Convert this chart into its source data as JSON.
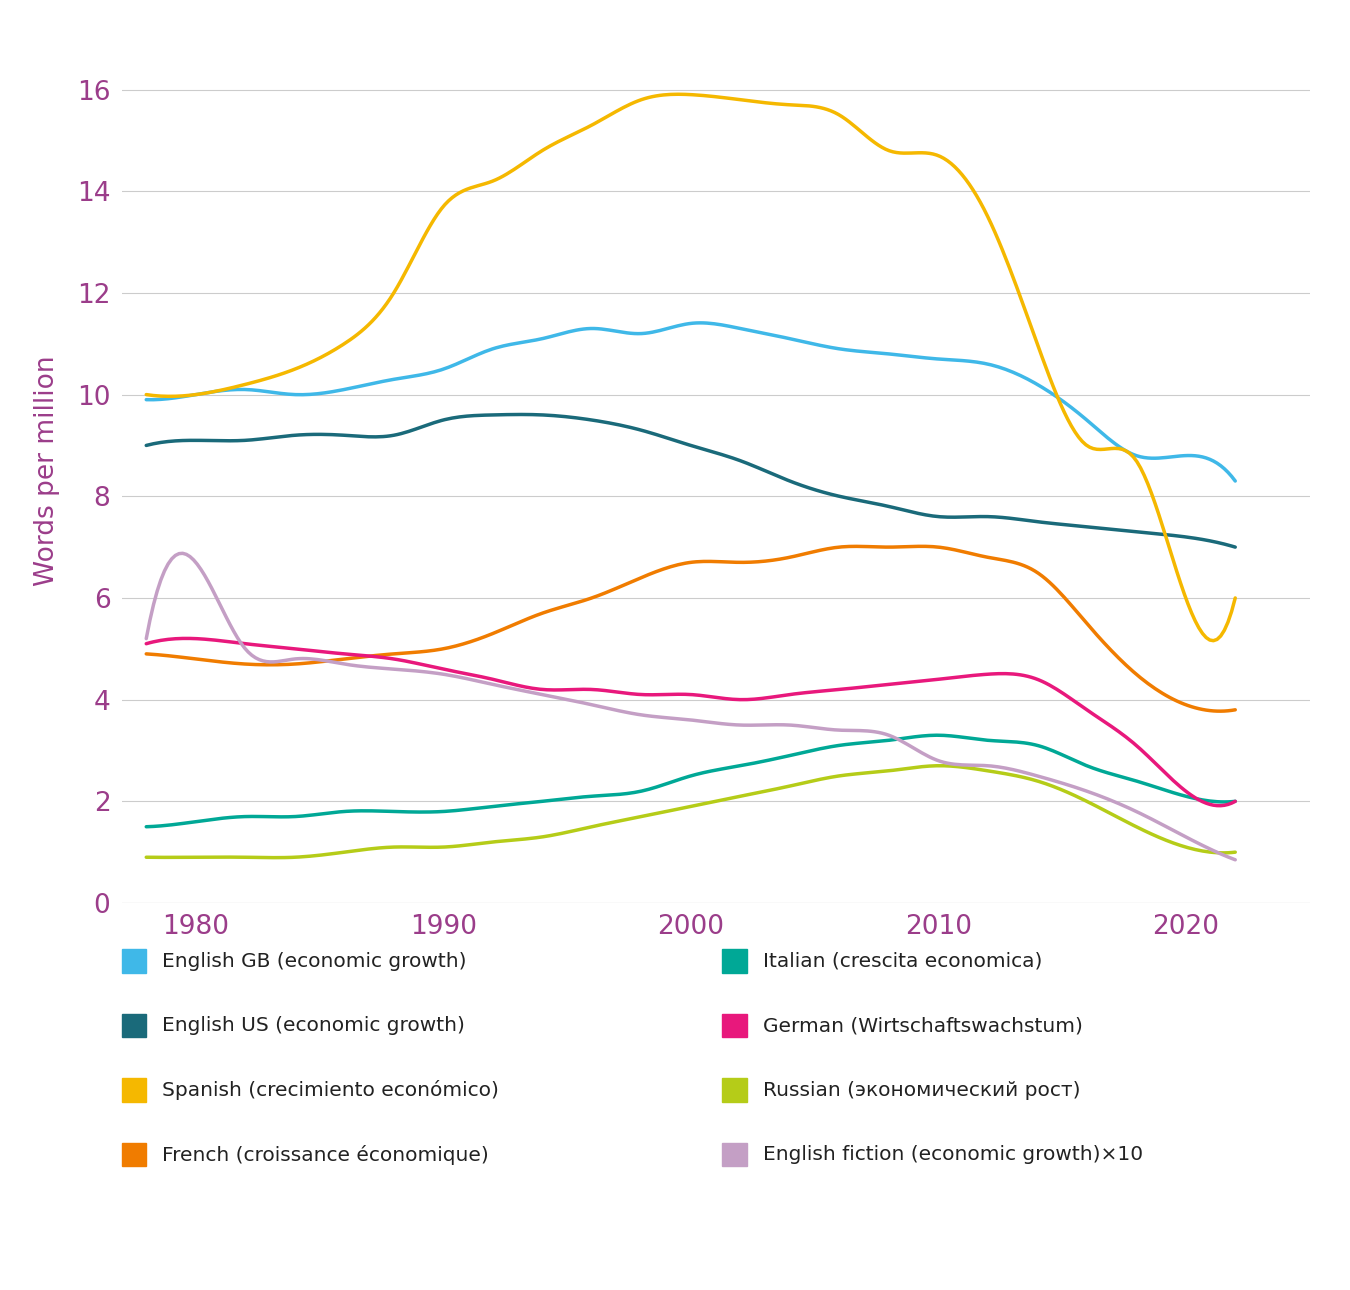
{
  "ylabel": "Words per million",
  "xlim": [
    1977,
    2025
  ],
  "ylim": [
    0,
    17
  ],
  "yticks": [
    0,
    2,
    4,
    6,
    8,
    10,
    12,
    14,
    16
  ],
  "xticks": [
    1980,
    1990,
    2000,
    2010,
    2020
  ],
  "background_color": "#ffffff",
  "grid_color": "#cccccc",
  "tick_color": "#9b3d8a",
  "label_color": "#9b3d8a",
  "series": [
    {
      "name": "English GB (economic growth)",
      "color": "#3fb8e8",
      "data_x": [
        1978,
        1980,
        1982,
        1984,
        1986,
        1988,
        1990,
        1992,
        1994,
        1996,
        1998,
        2000,
        2002,
        2004,
        2006,
        2008,
        2010,
        2012,
        2014,
        2016,
        2018,
        2020,
        2022
      ],
      "data_y": [
        9.9,
        10.0,
        10.1,
        10.0,
        10.1,
        10.3,
        10.5,
        10.9,
        11.1,
        11.3,
        11.2,
        11.4,
        11.3,
        11.1,
        10.9,
        10.8,
        10.7,
        10.6,
        10.2,
        9.5,
        8.8,
        8.8,
        8.3
      ],
      "linewidth": 2.5
    },
    {
      "name": "English US (economic growth)",
      "color": "#1a6a7a",
      "data_x": [
        1978,
        1980,
        1982,
        1984,
        1986,
        1988,
        1990,
        1992,
        1994,
        1996,
        1998,
        2000,
        2002,
        2004,
        2006,
        2008,
        2010,
        2012,
        2014,
        2016,
        2018,
        2020,
        2022
      ],
      "data_y": [
        9.0,
        9.1,
        9.1,
        9.2,
        9.2,
        9.2,
        9.5,
        9.6,
        9.6,
        9.5,
        9.3,
        9.0,
        8.7,
        8.3,
        8.0,
        7.8,
        7.6,
        7.6,
        7.5,
        7.4,
        7.3,
        7.2,
        7.0
      ],
      "linewidth": 2.5
    },
    {
      "name": "Spanish (crecimiento económico)",
      "color": "#f5b800",
      "data_x": [
        1978,
        1980,
        1982,
        1984,
        1986,
        1988,
        1990,
        1992,
        1994,
        1996,
        1998,
        2000,
        2002,
        2004,
        2006,
        2008,
        2010,
        2012,
        2014,
        2016,
        2018,
        2020,
        2022
      ],
      "data_y": [
        10.0,
        10.0,
        10.2,
        10.5,
        11.0,
        12.0,
        13.7,
        14.2,
        14.8,
        15.3,
        15.8,
        15.9,
        15.8,
        15.7,
        15.5,
        14.8,
        14.7,
        13.5,
        11.0,
        9.0,
        8.7,
        6.0,
        6.0
      ],
      "linewidth": 2.5
    },
    {
      "name": "French (croissance économique)",
      "color": "#f07c00",
      "data_x": [
        1978,
        1980,
        1982,
        1984,
        1986,
        1988,
        1990,
        1992,
        1994,
        1996,
        1998,
        2000,
        2002,
        2004,
        2006,
        2008,
        2010,
        2012,
        2014,
        2016,
        2018,
        2020,
        2022
      ],
      "data_y": [
        4.9,
        4.8,
        4.7,
        4.7,
        4.8,
        4.9,
        5.0,
        5.3,
        5.7,
        6.0,
        6.4,
        6.7,
        6.7,
        6.8,
        7.0,
        7.0,
        7.0,
        6.8,
        6.5,
        5.5,
        4.5,
        3.9,
        3.8
      ],
      "linewidth": 2.5
    },
    {
      "name": "Italian (crescita economica)",
      "color": "#00a896",
      "data_x": [
        1978,
        1980,
        1982,
        1984,
        1986,
        1988,
        1990,
        1992,
        1994,
        1996,
        1998,
        2000,
        2002,
        2004,
        2006,
        2008,
        2010,
        2012,
        2014,
        2016,
        2018,
        2020,
        2022
      ],
      "data_y": [
        1.5,
        1.6,
        1.7,
        1.7,
        1.8,
        1.8,
        1.8,
        1.9,
        2.0,
        2.1,
        2.2,
        2.5,
        2.7,
        2.9,
        3.1,
        3.2,
        3.3,
        3.2,
        3.1,
        2.7,
        2.4,
        2.1,
        2.0
      ],
      "linewidth": 2.5
    },
    {
      "name": "German (Wirtschaftswachstum)",
      "color": "#e8187c",
      "data_x": [
        1978,
        1980,
        1982,
        1984,
        1986,
        1988,
        1990,
        1992,
        1994,
        1996,
        1998,
        2000,
        2002,
        2004,
        2006,
        2008,
        2010,
        2012,
        2014,
        2016,
        2018,
        2020,
        2022
      ],
      "data_y": [
        5.1,
        5.2,
        5.1,
        5.0,
        4.9,
        4.8,
        4.6,
        4.4,
        4.2,
        4.2,
        4.1,
        4.1,
        4.0,
        4.1,
        4.2,
        4.3,
        4.4,
        4.5,
        4.4,
        3.8,
        3.1,
        2.2,
        2.0
      ],
      "linewidth": 2.5
    },
    {
      "name": "Russian (экономический рост)",
      "color": "#b5cc18",
      "data_x": [
        1978,
        1980,
        1982,
        1984,
        1986,
        1988,
        1990,
        1992,
        1994,
        1996,
        1998,
        2000,
        2002,
        2004,
        2006,
        2008,
        2010,
        2012,
        2014,
        2016,
        2018,
        2020,
        2022
      ],
      "data_y": [
        0.9,
        0.9,
        0.9,
        0.9,
        1.0,
        1.1,
        1.1,
        1.2,
        1.3,
        1.5,
        1.7,
        1.9,
        2.1,
        2.3,
        2.5,
        2.6,
        2.7,
        2.6,
        2.4,
        2.0,
        1.5,
        1.1,
        1.0
      ],
      "linewidth": 2.5
    },
    {
      "name": "English fiction (economic growth)×10",
      "color": "#c49fc5",
      "data_x": [
        1978,
        1980,
        1982,
        1984,
        1986,
        1988,
        1990,
        1992,
        1994,
        1996,
        1998,
        2000,
        2002,
        2004,
        2006,
        2008,
        2010,
        2012,
        2014,
        2016,
        2018,
        2020,
        2022
      ],
      "data_y": [
        5.2,
        6.7,
        5.0,
        4.8,
        4.7,
        4.6,
        4.5,
        4.3,
        4.1,
        3.9,
        3.7,
        3.6,
        3.5,
        3.5,
        3.4,
        3.3,
        2.8,
        2.7,
        2.5,
        2.2,
        1.8,
        1.3,
        0.85
      ],
      "linewidth": 2.5
    }
  ],
  "legend_items_left": [
    {
      "label": "English GB (economic growth)",
      "color": "#3fb8e8"
    },
    {
      "label": "English US (economic growth)",
      "color": "#1a6a7a"
    },
    {
      "label": "Spanish (crecimiento económico)",
      "color": "#f5b800"
    },
    {
      "label": "French (croissance économique)",
      "color": "#f07c00"
    }
  ],
  "legend_items_right": [
    {
      "label": "Italian (crescita economica)",
      "color": "#00a896"
    },
    {
      "label": "German (Wirtschaftswachstum)",
      "color": "#e8187c"
    },
    {
      "label": "Russian (экономический рост)",
      "color": "#b5cc18"
    },
    {
      "label": "English fiction (economic growth)×10",
      "color": "#c49fc5"
    }
  ]
}
